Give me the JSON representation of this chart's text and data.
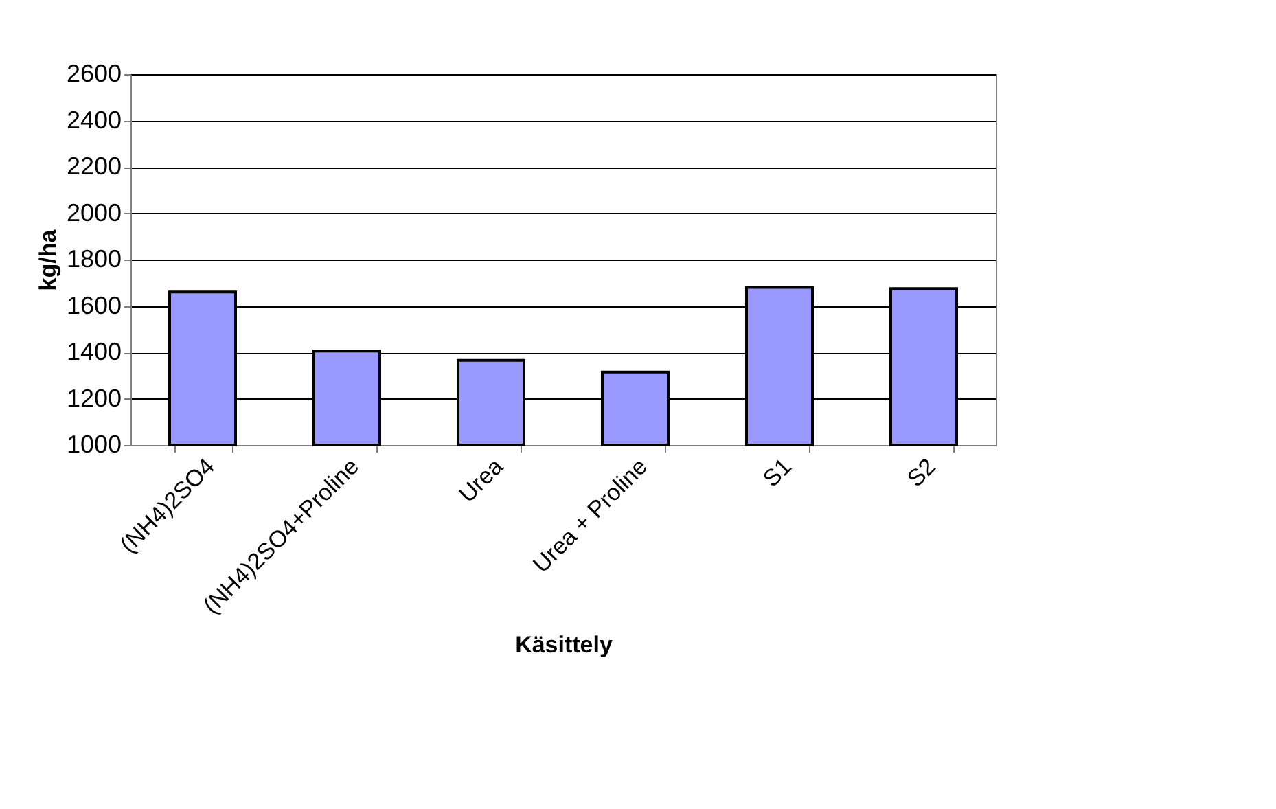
{
  "chart_data": {
    "type": "bar",
    "xlabel": "Käsittely",
    "ylabel": "kg/ha",
    "categories": [
      "(NH4)2SO4",
      "(NH4)2SO4+Proline",
      "Urea",
      "Urea + Proline",
      "S1",
      "S2"
    ],
    "values": [
      1660,
      1405,
      1365,
      1315,
      1680,
      1675
    ],
    "color": "#9999ff",
    "ylim": [
      1000,
      2600
    ],
    "yticks": [
      1000,
      1200,
      1400,
      1600,
      1800,
      2000,
      2200,
      2400,
      2600
    ],
    "grid": "y"
  }
}
